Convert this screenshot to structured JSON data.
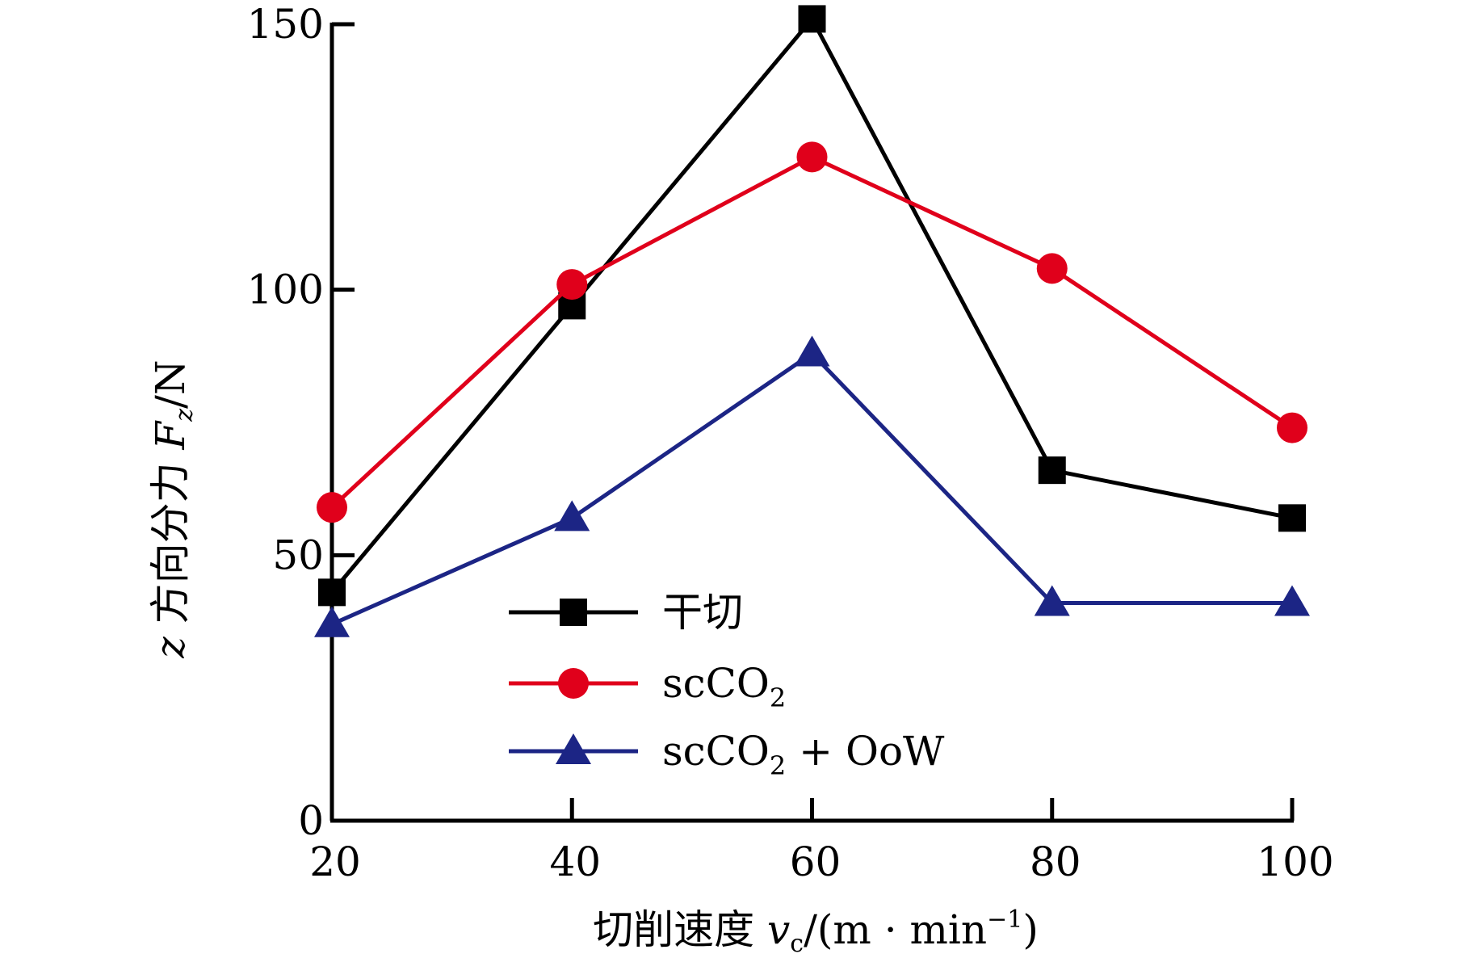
{
  "chart_data": {
    "type": "line",
    "x": [
      20,
      40,
      60,
      80,
      100
    ],
    "xlim": [
      20,
      100
    ],
    "ylim": [
      0,
      150
    ],
    "xticks": [
      "20",
      "40",
      "60",
      "80",
      "100"
    ],
    "yticks": [
      "0",
      "50",
      "100",
      "150"
    ],
    "xlabel": "切削速度 vc/(m·min⁻¹)",
    "xlabel_parts": {
      "main": "切削速度 ",
      "var": "v",
      "sub": "c",
      "unit_open": "/(m · min",
      "sup": "−1",
      "unit_close": ")"
    },
    "ylabel": "z 方向分力 Fz/N",
    "ylabel_parts": {
      "var_z": "z",
      "main": " 方向分力 ",
      "var": "F",
      "sub": "z",
      "unit": "/N"
    },
    "grid": false,
    "legend_position": "bottom-center",
    "series": [
      {
        "name": "干切",
        "legend_label": "干切",
        "color": "#000000",
        "marker": "square",
        "values": [
          43,
          97,
          151,
          66,
          57
        ]
      },
      {
        "name": "scCO2",
        "legend_label": "scCO",
        "legend_sub": "2",
        "legend_rest": "",
        "color": "#e0001b",
        "marker": "circle",
        "values": [
          59,
          101,
          125,
          104,
          74
        ]
      },
      {
        "name": "scCO2 + OoW",
        "legend_label": "scCO",
        "legend_sub": "2",
        "legend_rest": " + OoW",
        "color": "#1c2585",
        "marker": "triangle",
        "values": [
          37,
          57,
          88,
          41,
          41
        ]
      }
    ]
  }
}
